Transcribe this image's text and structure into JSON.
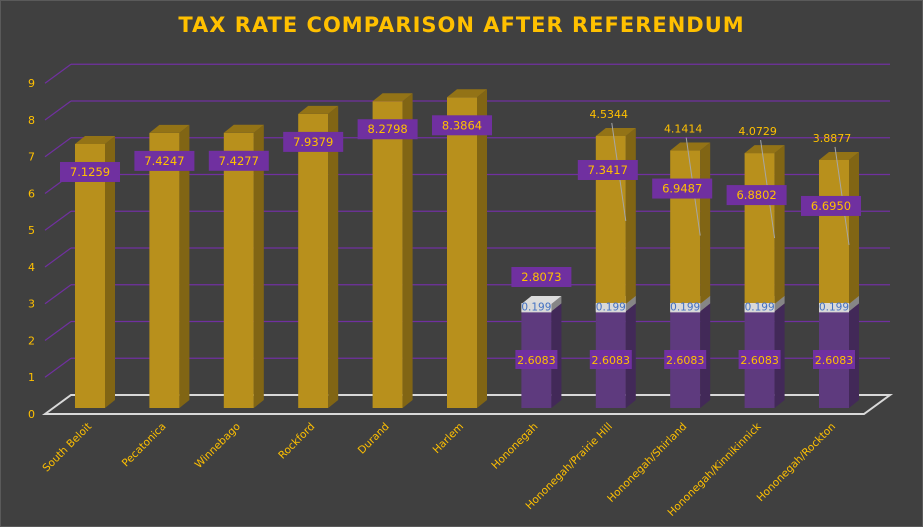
{
  "chart_data": {
    "type": "bar",
    "stacked": true,
    "three_d": true,
    "title": "TAX RATE COMPARISON AFTER REFERENDUM",
    "xlabel": "",
    "ylabel": "",
    "ylim": [
      0,
      9
    ],
    "yticks": [
      0,
      1,
      2,
      3,
      4,
      5,
      6,
      7,
      8,
      9
    ],
    "grid": true,
    "legend": "none",
    "categories": [
      "South Beloit",
      "Pecatonica",
      "Winnebago",
      "Rockford",
      "Durand",
      "Harlem",
      "Hononegah",
      "Hononegah/Prairie Hill",
      "Hononegah/Shirland",
      "Hononegah/Kinnikinnick",
      "Hononegah/Rockton"
    ],
    "series": [
      {
        "values": [
          0,
          0,
          0,
          0,
          0,
          0,
          2.6083,
          2.6083,
          2.6083,
          2.6083,
          2.6083
        ],
        "color": "#5E3A7E",
        "labels": [
          "",
          "",
          "",
          "",
          "",
          "",
          "2.6083",
          "2.6083",
          "2.6083",
          "2.6083",
          "2.6083"
        ]
      },
      {
        "values": [
          0,
          0,
          0,
          0,
          0,
          0,
          0.199,
          0.199,
          0.199,
          0.199,
          0.199
        ],
        "color": "#BFBFBF",
        "labels": [
          "",
          "",
          "",
          "",
          "",
          "",
          "0.199",
          "0.199",
          "0.199",
          "0.199",
          "0.199"
        ]
      },
      {
        "values": [
          7.1259,
          7.4247,
          7.4277,
          7.9379,
          8.2798,
          8.3864,
          0,
          4.5344,
          4.1414,
          4.0729,
          3.8877
        ],
        "color": "#B8901C",
        "labels": [
          "",
          "",
          "",
          "",
          "",
          "",
          "",
          "4.5344",
          "4.1414",
          "4.0729",
          "3.8877"
        ]
      }
    ],
    "totals": [
      "7.1259",
      "7.4247",
      "7.4277",
      "7.9379",
      "8.2798",
      "8.3864",
      "2.8073",
      "7.3417",
      "6.9487",
      "6.8802",
      "6.6950"
    ],
    "colors": {
      "text": "#FFC000",
      "grid": "#7030A0",
      "label_box": "#7030A0",
      "floor": "#D9D9D9",
      "background": "#404040"
    }
  }
}
